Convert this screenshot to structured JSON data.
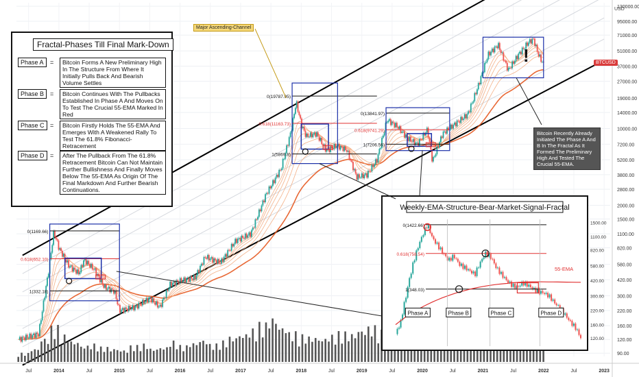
{
  "chart_data": {
    "type": "candlestick",
    "symbol": "BTCUSD",
    "currency": "USD",
    "x_ticks": [
      "Jul",
      "2014",
      "Jul",
      "2015",
      "Jul",
      "2016",
      "Jul",
      "2017",
      "Jul",
      "2018",
      "Jul",
      "2019",
      "Jul",
      "2020",
      "Jul",
      "2021",
      "Jul",
      "2022",
      "Jul",
      "2023"
    ],
    "y_ticks": [
      90,
      120,
      160,
      220,
      300,
      420,
      580,
      820,
      1100,
      1500,
      2000,
      2800,
      3800,
      5200,
      7200,
      10000,
      14000,
      19000,
      27000,
      37000,
      51000,
      71000,
      95000,
      130000
    ],
    "y_scale": "log",
    "ylim": [
      84,
      140000
    ],
    "price": [
      {
        "date": "2013-05",
        "value": 120
      },
      {
        "date": "2013-09",
        "value": 135
      },
      {
        "date": "2013-11",
        "value": 520
      },
      {
        "date": "2013-12",
        "value": 1150
      },
      {
        "date": "2014-01",
        "value": 820
      },
      {
        "date": "2014-03",
        "value": 560
      },
      {
        "date": "2014-05",
        "value": 480
      },
      {
        "date": "2014-06",
        "value": 640
      },
      {
        "date": "2014-08",
        "value": 520
      },
      {
        "date": "2014-10",
        "value": 360
      },
      {
        "date": "2014-12",
        "value": 330
      },
      {
        "date": "2015-01",
        "value": 220
      },
      {
        "date": "2015-04",
        "value": 235
      },
      {
        "date": "2015-07",
        "value": 285
      },
      {
        "date": "2015-09",
        "value": 235
      },
      {
        "date": "2015-11",
        "value": 380
      },
      {
        "date": "2016-01",
        "value": 410
      },
      {
        "date": "2016-04",
        "value": 440
      },
      {
        "date": "2016-06",
        "value": 680
      },
      {
        "date": "2016-09",
        "value": 600
      },
      {
        "date": "2016-12",
        "value": 950
      },
      {
        "date": "2017-03",
        "value": 1100
      },
      {
        "date": "2017-06",
        "value": 2500
      },
      {
        "date": "2017-09",
        "value": 4300
      },
      {
        "date": "2017-11",
        "value": 9500
      },
      {
        "date": "2017-12",
        "value": 17500
      },
      {
        "date": "2018-01",
        "value": 11000
      },
      {
        "date": "2018-02",
        "value": 8500
      },
      {
        "date": "2018-04",
        "value": 9000
      },
      {
        "date": "2018-06",
        "value": 6300
      },
      {
        "date": "2018-08",
        "value": 7000
      },
      {
        "date": "2018-10",
        "value": 6400
      },
      {
        "date": "2018-12",
        "value": 3600
      },
      {
        "date": "2019-02",
        "value": 3800
      },
      {
        "date": "2019-04",
        "value": 5200
      },
      {
        "date": "2019-06",
        "value": 12000
      },
      {
        "date": "2019-08",
        "value": 10500
      },
      {
        "date": "2019-10",
        "value": 8200
      },
      {
        "date": "2019-12",
        "value": 7200
      },
      {
        "date": "2020-02",
        "value": 9800
      },
      {
        "date": "2020-03",
        "value": 5000
      },
      {
        "date": "2020-05",
        "value": 9000
      },
      {
        "date": "2020-08",
        "value": 11500
      },
      {
        "date": "2020-10",
        "value": 13500
      },
      {
        "date": "2020-12",
        "value": 24000
      },
      {
        "date": "2021-02",
        "value": 47000
      },
      {
        "date": "2021-04",
        "value": 58000
      },
      {
        "date": "2021-06",
        "value": 34000
      },
      {
        "date": "2021-08",
        "value": 47000
      },
      {
        "date": "2021-10",
        "value": 61000
      },
      {
        "date": "2021-11",
        "value": 65000
      },
      {
        "date": "2021-12",
        "value": 47000
      },
      {
        "date": "2022-01",
        "value": 38500
      }
    ],
    "volume": [
      30,
      45,
      80,
      120,
      90,
      70,
      55,
      60,
      50,
      45,
      40,
      55,
      60,
      45,
      50,
      70,
      55,
      65,
      75,
      60,
      70,
      85,
      95,
      110,
      130,
      150,
      120,
      100,
      90,
      85,
      80,
      90,
      100,
      95,
      110,
      120,
      105,
      100,
      95,
      110,
      130,
      120,
      115,
      125,
      140,
      150,
      135,
      120,
      125,
      140,
      130,
      120,
      115
    ],
    "fib_levels": [
      {
        "label": "0(1169.66)",
        "value": 1169.66
      },
      {
        "label": "0.618(652.10)",
        "value": 652.1
      },
      {
        "label": "1(332.18)",
        "value": 332.18
      },
      {
        "label": "0(19787.95)",
        "value": 19787.95
      },
      {
        "label": "0.618(11163.73)",
        "value": 11163.73
      },
      {
        "label": "1(5869.8)",
        "value": 5869.8
      },
      {
        "label": "0(13841.97)",
        "value": 13841.97
      },
      {
        "label": "0.618(9741.29)",
        "value": 9741.29
      },
      {
        "label": "1(7206.56)",
        "value": 7206.56
      }
    ],
    "annotations": {
      "channel_label": "Major Ascending-Channel",
      "exclamation": "!"
    },
    "inset": {
      "title": "Weekly-EMA-Structure-Bear-Market-Signal-Fractal",
      "ema_label": "55-EMA",
      "y_ticks": [
        120,
        160,
        220,
        300,
        420,
        580,
        820,
        1100,
        1500
      ],
      "ylim": [
        100,
        1600
      ],
      "fib_levels": [
        {
          "label": "0(1422.66)",
          "value": 1422.66
        },
        {
          "label": "0.618(758.54)",
          "value": 758.54
        },
        {
          "label": "1(348.03)",
          "value": 348.03
        }
      ],
      "phases": [
        "Phase A",
        "Phase B",
        "Phase C",
        "Phase D"
      ],
      "price": [
        130,
        170,
        300,
        520,
        800,
        1100,
        1420,
        1050,
        900,
        760,
        650,
        720,
        600,
        560,
        520,
        480,
        620,
        760,
        700,
        560,
        480,
        420,
        380,
        360,
        400,
        380,
        350,
        330,
        320,
        300,
        260,
        230,
        200,
        170,
        150,
        120
      ]
    }
  },
  "legend_panel": {
    "title": "Fractal-Phases Till Final Mark-Down",
    "phases": [
      {
        "tag": "Phase A",
        "eq": "=",
        "text": "Bitcoin Forms A New Preliminary High In The Structure From Where It Initially Pulls Back And Bearish Volume Settles"
      },
      {
        "tag": "Phase B",
        "eq": "=",
        "text": "Bitcoin Continues With The Pullbacks Established In Phase A And Moves On To Test The Crucial 55-EMA Marked In Red"
      },
      {
        "tag": "Phase C",
        "eq": "=",
        "text": "Bitcoin Firstly Holds The 55-EMA And Emerges With A Weakened Rally To Test The 61.8% Fibonacci-Retracement"
      },
      {
        "tag": "Phase D",
        "eq": "=",
        "text": "After The Pullback From The 61.8% Retracement Bitcoin Can Not Maintain Further Bullishness And Finally Moves Below The 55-EMA As Origin Of The Final Markdown And Further Bearish Continuations."
      }
    ]
  },
  "side_note": "Bitcoin Recently Already Initiated The Phase A And B In The Fractal As It Formed The Preliminary High And Tested The Crucial 55-EMA.",
  "colors": {
    "up": "#26a69a",
    "down": "#ef5350",
    "box": "#1a2fa8",
    "fib_red": "#e03030",
    "ema": "#e8813a",
    "volume": "#555555"
  }
}
